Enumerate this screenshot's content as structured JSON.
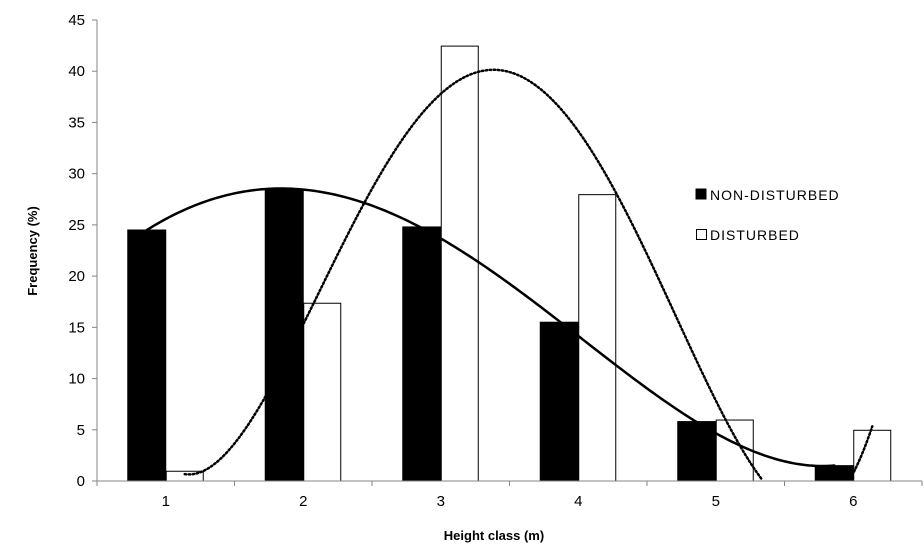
{
  "chart_data": {
    "type": "bar",
    "title": "",
    "xlabel": "Height class (m)",
    "ylabel": "Frequency (%)",
    "categories": [
      "1",
      "2",
      "3",
      "4",
      "5",
      "6"
    ],
    "ylim": [
      0,
      45
    ],
    "yticks": [
      0,
      5,
      10,
      15,
      20,
      25,
      30,
      35,
      40,
      45
    ],
    "grid": false,
    "legend_position": "right",
    "series": [
      {
        "name": "NON-DISTURBED",
        "values": [
          24.5,
          28.5,
          24.8,
          15.5,
          5.8,
          1.5
        ],
        "color": "#000000",
        "fill": "solid",
        "trendline": "polynomial",
        "trendline_style": "solid"
      },
      {
        "name": "DISTURBED",
        "values": [
          1.0,
          17.4,
          42.5,
          28.0,
          6.0,
          5.0
        ],
        "color": "#ffffff",
        "fill": "hollow",
        "trendline": "polynomial",
        "trendline_style": "dotted"
      }
    ]
  }
}
